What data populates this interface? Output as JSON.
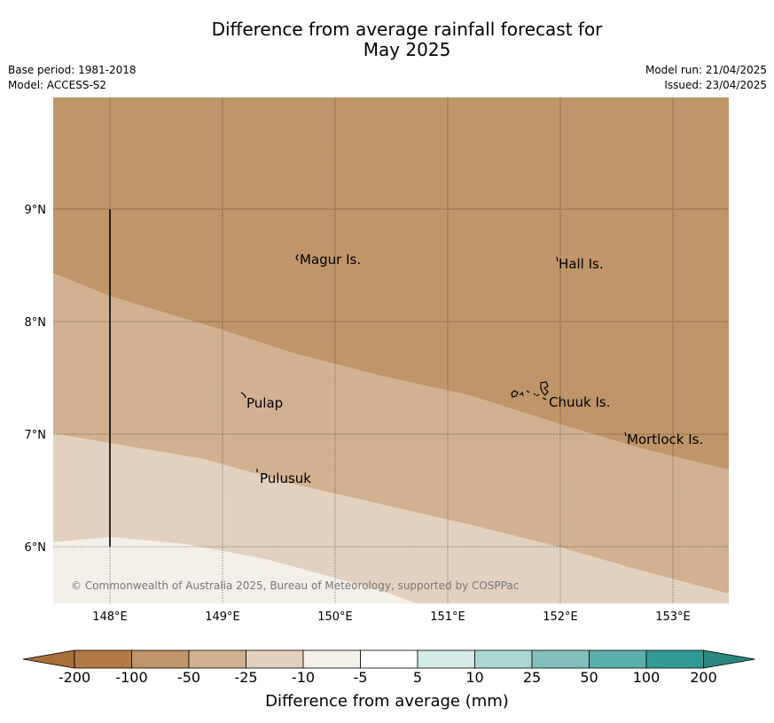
{
  "header": {
    "title_line1": "Difference from average rainfall forecast for",
    "title_line2": "May 2025",
    "base_period": "Base period: 1981-2018",
    "model": "Model: ACCESS-S2",
    "model_run": "Model run: 21/04/2025",
    "issued": "Issued: 23/04/2025"
  },
  "map": {
    "lon_ticks": [
      "148°E",
      "149°E",
      "150°E",
      "151°E",
      "152°E",
      "153°E"
    ],
    "lat_ticks": [
      "9°N",
      "8°N",
      "7°N",
      "6°N"
    ],
    "places": [
      "Magur Is.",
      "Hall Is.",
      "Pulap",
      "Chuuk Is.",
      "Mortlock Is.",
      "Pulusuk"
    ],
    "copyright": "© Commonwealth of Australia 2025, Bureau of Meteorology, supported by COSPPac",
    "colors": {
      "band_minus100_minus50": "#bf9569",
      "band_minus50_minus25": "#d1b191",
      "band_minus25_minus10": "#e3d1bf",
      "band_minus10_minus5": "#f3efe9"
    }
  },
  "colorbar": {
    "labels": [
      "-200",
      "-100",
      "-50",
      "-25",
      "-10",
      "-5",
      "5",
      "10",
      "25",
      "50",
      "100",
      "200"
    ],
    "colors": [
      "#a87036",
      "#b27a44",
      "#bf9569",
      "#d1b191",
      "#e3d1bf",
      "#f3efe9",
      "#ffffff",
      "#d4ebe7",
      "#acd6d2",
      "#82c1bd",
      "#5bafaa",
      "#329a94",
      "#29877f"
    ],
    "title": "Difference from average (mm)"
  }
}
